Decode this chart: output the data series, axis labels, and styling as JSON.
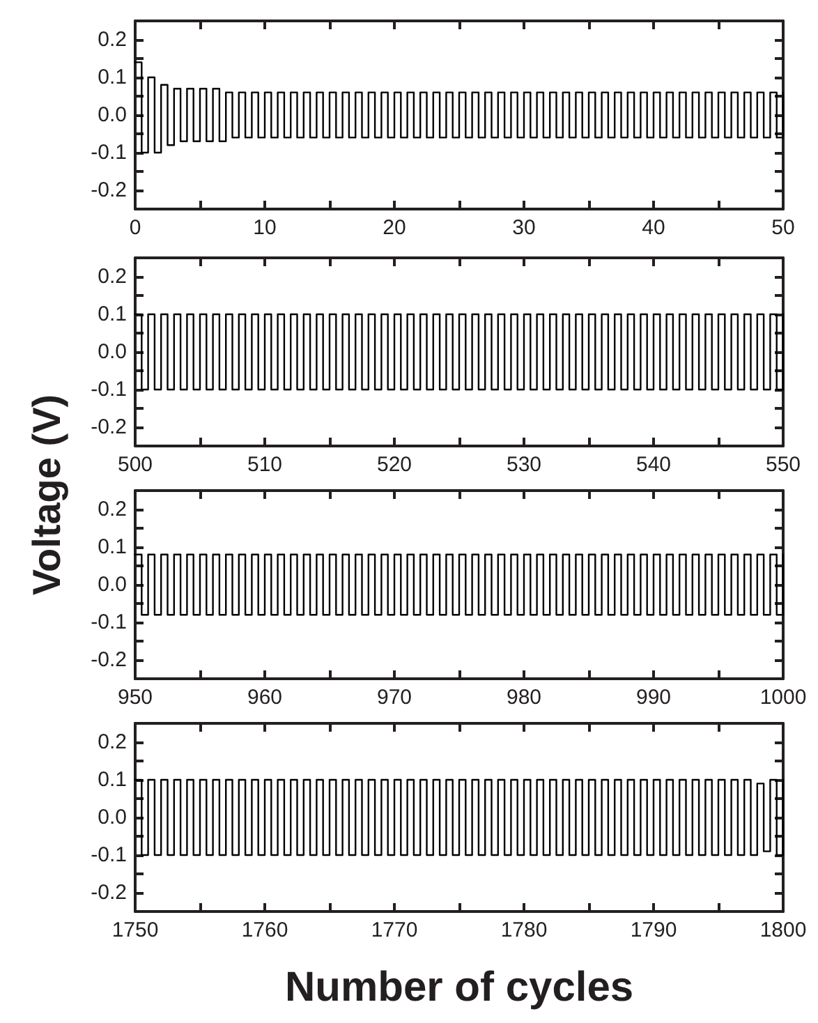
{
  "chart_data": [
    {
      "type": "step",
      "xlim": [
        0,
        50
      ],
      "ylim": [
        -0.25,
        0.25
      ],
      "xticks": [
        0,
        {
          "value": 5,
          "label": null
        },
        10,
        {
          "value": 15,
          "label": null
        },
        20,
        {
          "value": 25,
          "label": null
        },
        30,
        {
          "value": 35,
          "label": null
        },
        40,
        {
          "value": 45,
          "label": null
        },
        50
      ],
      "yticks": [
        -0.2,
        {
          "value": -0.15,
          "label": null
        },
        -0.1,
        {
          "value": -0.05,
          "label": null
        },
        {
          "value": 0,
          "label": "0.0"
        },
        {
          "value": 0.05,
          "label": null
        },
        0.1,
        {
          "value": 0.15,
          "label": null
        },
        0.2
      ],
      "grid": false,
      "marker": "none",
      "line_style": "solid",
      "series": [
        {
          "color": "#000000",
          "x": [
            0,
            0.5,
            1,
            1.5,
            2,
            2.5,
            3,
            3.5,
            4,
            4.5,
            5,
            5.5,
            6,
            6.5,
            7,
            7.5,
            8,
            8.5,
            9,
            9.5,
            10,
            10.5,
            11,
            11.5,
            12,
            12.5,
            13,
            13.5,
            14,
            14.5,
            15,
            15.5,
            16,
            16.5,
            17,
            17.5,
            18,
            18.5,
            19,
            19.5,
            20,
            20.5,
            21,
            21.5,
            22,
            22.5,
            23,
            23.5,
            24,
            24.5,
            25,
            25.5,
            26,
            26.5,
            27,
            27.5,
            28,
            28.5,
            29,
            29.5,
            30,
            30.5,
            31,
            31.5,
            32,
            32.5,
            33,
            33.5,
            34,
            34.5,
            35,
            35.5,
            36,
            36.5,
            37,
            37.5,
            38,
            38.5,
            39,
            39.5,
            40,
            40.5,
            41,
            41.5,
            42,
            42.5,
            43,
            43.5,
            44,
            44.5,
            45,
            45.5,
            46,
            46.5,
            47,
            47.5,
            48,
            48.5,
            49,
            49.5,
            50
          ],
          "values": [
            0.14,
            -0.1,
            0.1,
            -0.1,
            0.08,
            -0.08,
            0.07,
            -0.07,
            0.07,
            -0.07,
            0.07,
            -0.07,
            0.07,
            -0.07,
            0.06,
            -0.06,
            0.06,
            -0.06,
            0.06,
            -0.06,
            0.06,
            -0.06,
            0.06,
            -0.06,
            0.06,
            -0.06,
            0.06,
            -0.06,
            0.06,
            -0.06,
            0.06,
            -0.06,
            0.06,
            -0.06,
            0.06,
            -0.06,
            0.06,
            -0.06,
            0.06,
            -0.06,
            0.06,
            -0.06,
            0.06,
            -0.06,
            0.06,
            -0.06,
            0.06,
            -0.06,
            0.06,
            -0.06,
            0.06,
            -0.06,
            0.06,
            -0.06,
            0.06,
            -0.06,
            0.06,
            -0.06,
            0.06,
            -0.06,
            0.06,
            -0.06,
            0.06,
            -0.06,
            0.06,
            -0.06,
            0.06,
            -0.06,
            0.06,
            -0.06,
            0.06,
            -0.06,
            0.06,
            -0.06,
            0.06,
            -0.06,
            0.06,
            -0.06,
            0.06,
            -0.06,
            0.06,
            -0.06,
            0.06,
            -0.06,
            0.06,
            -0.06,
            0.06,
            -0.06,
            0.06,
            -0.06,
            0.06,
            -0.06,
            0.06,
            -0.06,
            0.06,
            -0.06,
            0.06,
            -0.06,
            0.06,
            -0.06,
            0.06
          ]
        }
      ]
    },
    {
      "type": "step",
      "xlim": [
        500,
        550
      ],
      "ylim": [
        -0.25,
        0.25
      ],
      "ylabel": "Voltage (V)",
      "xticks": [
        500,
        {
          "value": 505,
          "label": null
        },
        510,
        {
          "value": 515,
          "label": null
        },
        520,
        {
          "value": 525,
          "label": null
        },
        530,
        {
          "value": 535,
          "label": null
        },
        540,
        {
          "value": 545,
          "label": null
        },
        550
      ],
      "yticks": [
        -0.2,
        {
          "value": -0.15,
          "label": null
        },
        -0.1,
        {
          "value": -0.05,
          "label": null
        },
        {
          "value": 0,
          "label": "0.0"
        },
        {
          "value": 0.05,
          "label": null
        },
        0.1,
        {
          "value": 0.15,
          "label": null
        },
        0.2
      ],
      "grid": false,
      "marker": "none",
      "line_style": "solid",
      "series": [
        {
          "color": "#000000",
          "x": [
            500,
            500.5,
            501,
            501.5,
            502,
            502.5,
            503,
            503.5,
            504,
            504.5,
            505,
            505.5,
            506,
            506.5,
            507,
            507.5,
            508,
            508.5,
            509,
            509.5,
            510,
            510.5,
            511,
            511.5,
            512,
            512.5,
            513,
            513.5,
            514,
            514.5,
            515,
            515.5,
            516,
            516.5,
            517,
            517.5,
            518,
            518.5,
            519,
            519.5,
            520,
            520.5,
            521,
            521.5,
            522,
            522.5,
            523,
            523.5,
            524,
            524.5,
            525,
            525.5,
            526,
            526.5,
            527,
            527.5,
            528,
            528.5,
            529,
            529.5,
            530,
            530.5,
            531,
            531.5,
            532,
            532.5,
            533,
            533.5,
            534,
            534.5,
            535,
            535.5,
            536,
            536.5,
            537,
            537.5,
            538,
            538.5,
            539,
            539.5,
            540,
            540.5,
            541,
            541.5,
            542,
            542.5,
            543,
            543.5,
            544,
            544.5,
            545,
            545.5,
            546,
            546.5,
            547,
            547.5,
            548,
            548.5,
            549,
            549.5,
            550
          ],
          "values": [
            0.1,
            -0.1,
            0.1,
            -0.1,
            0.1,
            -0.1,
            0.1,
            -0.1,
            0.1,
            -0.1,
            0.1,
            -0.1,
            0.1,
            -0.1,
            0.1,
            -0.1,
            0.1,
            -0.1,
            0.1,
            -0.1,
            0.1,
            -0.1,
            0.1,
            -0.1,
            0.1,
            -0.1,
            0.1,
            -0.1,
            0.1,
            -0.1,
            0.1,
            -0.1,
            0.1,
            -0.1,
            0.1,
            -0.1,
            0.1,
            -0.1,
            0.1,
            -0.1,
            0.1,
            -0.1,
            0.1,
            -0.1,
            0.1,
            -0.1,
            0.1,
            -0.1,
            0.1,
            -0.1,
            0.1,
            -0.1,
            0.1,
            -0.1,
            0.1,
            -0.1,
            0.1,
            -0.1,
            0.1,
            -0.1,
            0.1,
            -0.1,
            0.1,
            -0.1,
            0.1,
            -0.1,
            0.1,
            -0.1,
            0.1,
            -0.1,
            0.1,
            -0.1,
            0.1,
            -0.1,
            0.1,
            -0.1,
            0.1,
            -0.1,
            0.1,
            -0.1,
            0.1,
            -0.1,
            0.1,
            -0.1,
            0.1,
            -0.1,
            0.1,
            -0.1,
            0.1,
            -0.1,
            0.1,
            -0.1,
            0.1,
            -0.1,
            0.1,
            -0.1,
            0.1,
            -0.1,
            0.1,
            -0.1,
            0.1
          ]
        }
      ]
    },
    {
      "type": "step",
      "xlim": [
        950,
        1000
      ],
      "ylim": [
        -0.25,
        0.25
      ],
      "xticks": [
        950,
        {
          "value": 955,
          "label": null
        },
        960,
        {
          "value": 965,
          "label": null
        },
        970,
        {
          "value": 975,
          "label": null
        },
        980,
        {
          "value": 985,
          "label": null
        },
        990,
        {
          "value": 995,
          "label": null
        },
        1000
      ],
      "yticks": [
        -0.2,
        {
          "value": -0.15,
          "label": null
        },
        -0.1,
        {
          "value": -0.05,
          "label": null
        },
        {
          "value": 0,
          "label": "0.0"
        },
        {
          "value": 0.05,
          "label": null
        },
        0.1,
        {
          "value": 0.15,
          "label": null
        },
        0.2
      ],
      "grid": false,
      "marker": "none",
      "line_style": "solid",
      "series": [
        {
          "color": "#000000",
          "x": [
            950,
            950.5,
            951,
            951.5,
            952,
            952.5,
            953,
            953.5,
            954,
            954.5,
            955,
            955.5,
            956,
            956.5,
            957,
            957.5,
            958,
            958.5,
            959,
            959.5,
            960,
            960.5,
            961,
            961.5,
            962,
            962.5,
            963,
            963.5,
            964,
            964.5,
            965,
            965.5,
            966,
            966.5,
            967,
            967.5,
            968,
            968.5,
            969,
            969.5,
            970,
            970.5,
            971,
            971.5,
            972,
            972.5,
            973,
            973.5,
            974,
            974.5,
            975,
            975.5,
            976,
            976.5,
            977,
            977.5,
            978,
            978.5,
            979,
            979.5,
            980,
            980.5,
            981,
            981.5,
            982,
            982.5,
            983,
            983.5,
            984,
            984.5,
            985,
            985.5,
            986,
            986.5,
            987,
            987.5,
            988,
            988.5,
            989,
            989.5,
            990,
            990.5,
            991,
            991.5,
            992,
            992.5,
            993,
            993.5,
            994,
            994.5,
            995,
            995.5,
            996,
            996.5,
            997,
            997.5,
            998,
            998.5,
            999,
            999.5,
            1000
          ],
          "values": [
            0.08,
            -0.08,
            0.08,
            -0.08,
            0.08,
            -0.08,
            0.08,
            -0.08,
            0.08,
            -0.08,
            0.08,
            -0.08,
            0.08,
            -0.08,
            0.08,
            -0.08,
            0.08,
            -0.08,
            0.08,
            -0.08,
            0.08,
            -0.08,
            0.08,
            -0.08,
            0.08,
            -0.08,
            0.08,
            -0.08,
            0.08,
            -0.08,
            0.08,
            -0.08,
            0.08,
            -0.08,
            0.08,
            -0.08,
            0.08,
            -0.08,
            0.08,
            -0.08,
            0.08,
            -0.08,
            0.08,
            -0.08,
            0.08,
            -0.08,
            0.08,
            -0.08,
            0.08,
            -0.08,
            0.08,
            -0.08,
            0.08,
            -0.08,
            0.08,
            -0.08,
            0.08,
            -0.08,
            0.08,
            -0.08,
            0.08,
            -0.08,
            0.08,
            -0.08,
            0.08,
            -0.08,
            0.08,
            -0.08,
            0.08,
            -0.08,
            0.08,
            -0.08,
            0.08,
            -0.08,
            0.08,
            -0.08,
            0.08,
            -0.08,
            0.08,
            -0.08,
            0.08,
            -0.08,
            0.08,
            -0.08,
            0.08,
            -0.08,
            0.08,
            -0.08,
            0.08,
            -0.08,
            0.08,
            -0.08,
            0.08,
            -0.08,
            0.08,
            -0.08,
            0.08,
            -0.08,
            0.08,
            -0.08,
            0.08
          ]
        }
      ]
    },
    {
      "type": "step",
      "xlim": [
        1750,
        1800
      ],
      "ylim": [
        -0.25,
        0.25
      ],
      "xlabel": "Number of cycles",
      "xticks": [
        1750,
        {
          "value": 1755,
          "label": null
        },
        1760,
        {
          "value": 1765,
          "label": null
        },
        1770,
        {
          "value": 1775,
          "label": null
        },
        1780,
        {
          "value": 1785,
          "label": null
        },
        1790,
        {
          "value": 1795,
          "label": null
        },
        1800
      ],
      "yticks": [
        -0.2,
        {
          "value": -0.15,
          "label": null
        },
        -0.1,
        {
          "value": -0.05,
          "label": null
        },
        {
          "value": 0,
          "label": "0.0"
        },
        {
          "value": 0.05,
          "label": null
        },
        0.1,
        {
          "value": 0.15,
          "label": null
        },
        0.2
      ],
      "grid": false,
      "marker": "none",
      "line_style": "solid",
      "series": [
        {
          "color": "#000000",
          "x": [
            1750,
            1750.5,
            1751,
            1751.5,
            1752,
            1752.5,
            1753,
            1753.5,
            1754,
            1754.5,
            1755,
            1755.5,
            1756,
            1756.5,
            1757,
            1757.5,
            1758,
            1758.5,
            1759,
            1759.5,
            1760,
            1760.5,
            1761,
            1761.5,
            1762,
            1762.5,
            1763,
            1763.5,
            1764,
            1764.5,
            1765,
            1765.5,
            1766,
            1766.5,
            1767,
            1767.5,
            1768,
            1768.5,
            1769,
            1769.5,
            1770,
            1770.5,
            1771,
            1771.5,
            1772,
            1772.5,
            1773,
            1773.5,
            1774,
            1774.5,
            1775,
            1775.5,
            1776,
            1776.5,
            1777,
            1777.5,
            1778,
            1778.5,
            1779,
            1779.5,
            1780,
            1780.5,
            1781,
            1781.5,
            1782,
            1782.5,
            1783,
            1783.5,
            1784,
            1784.5,
            1785,
            1785.5,
            1786,
            1786.5,
            1787,
            1787.5,
            1788,
            1788.5,
            1789,
            1789.5,
            1790,
            1790.5,
            1791,
            1791.5,
            1792,
            1792.5,
            1793,
            1793.5,
            1794,
            1794.5,
            1795,
            1795.5,
            1796,
            1796.5,
            1797,
            1797.5,
            1798,
            1798.5,
            1799,
            1799.5,
            1800
          ],
          "values": [
            0.1,
            -0.1,
            0.1,
            -0.1,
            0.1,
            -0.1,
            0.1,
            -0.1,
            0.1,
            -0.1,
            0.1,
            -0.1,
            0.1,
            -0.1,
            0.1,
            -0.1,
            0.1,
            -0.1,
            0.1,
            -0.1,
            0.1,
            -0.1,
            0.1,
            -0.1,
            0.1,
            -0.1,
            0.1,
            -0.1,
            0.1,
            -0.1,
            0.1,
            -0.1,
            0.1,
            -0.1,
            0.1,
            -0.1,
            0.1,
            -0.1,
            0.1,
            -0.1,
            0.1,
            -0.1,
            0.1,
            -0.1,
            0.1,
            -0.1,
            0.1,
            -0.1,
            0.1,
            -0.1,
            0.1,
            -0.1,
            0.1,
            -0.1,
            0.1,
            -0.1,
            0.1,
            -0.1,
            0.1,
            -0.1,
            0.1,
            -0.1,
            0.1,
            -0.1,
            0.1,
            -0.1,
            0.1,
            -0.1,
            0.1,
            -0.1,
            0.1,
            -0.1,
            0.1,
            -0.1,
            0.1,
            -0.1,
            0.1,
            -0.1,
            0.1,
            -0.1,
            0.1,
            -0.1,
            0.1,
            -0.1,
            0.1,
            -0.1,
            0.1,
            -0.1,
            0.1,
            -0.1,
            0.1,
            -0.1,
            0.1,
            -0.1,
            0.1,
            -0.1,
            0.09,
            -0.09,
            0.1,
            -0.1,
            0.1
          ]
        }
      ]
    }
  ]
}
